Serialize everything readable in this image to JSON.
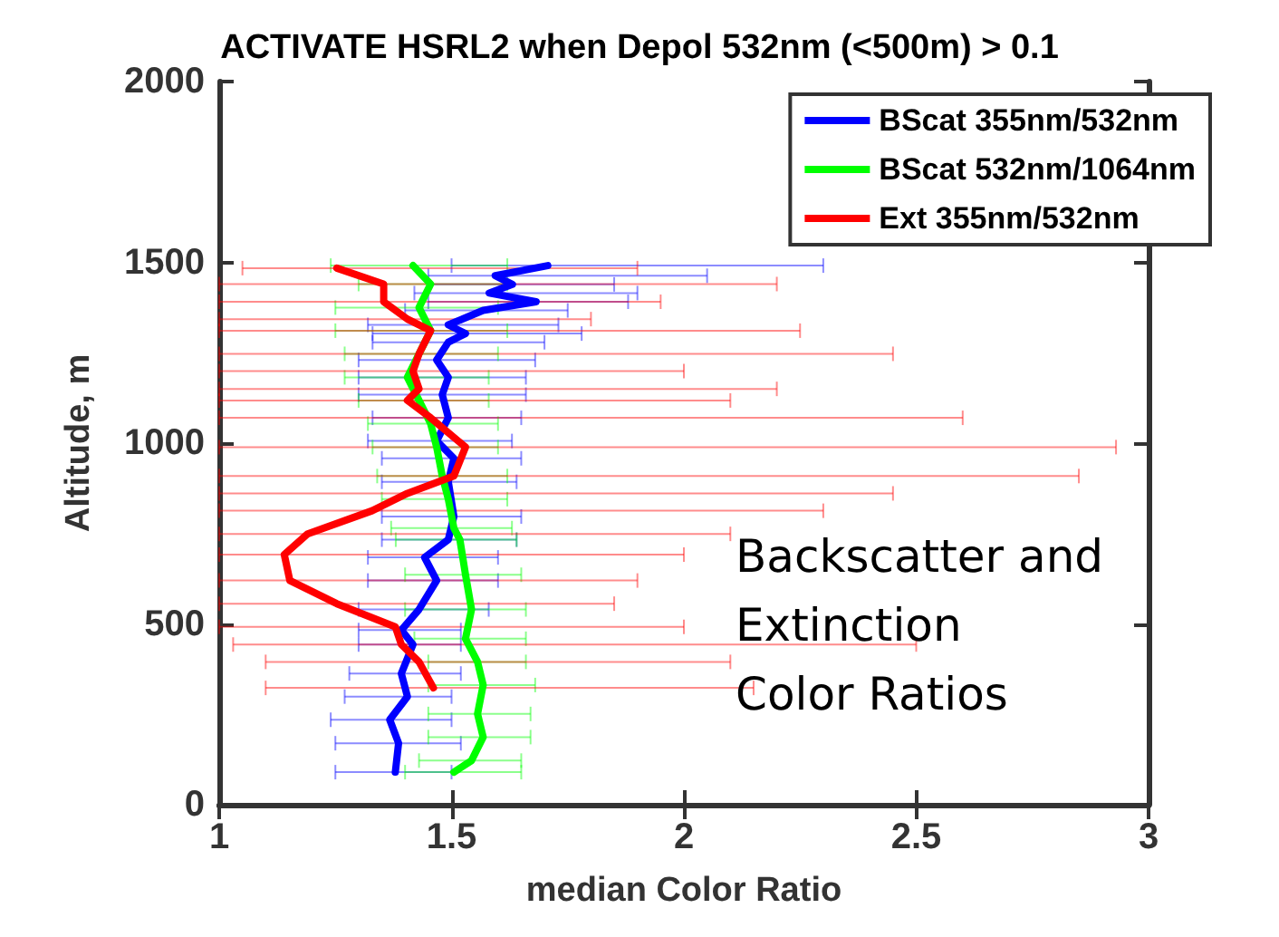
{
  "chart_data": {
    "type": "line",
    "title": "ACTIVATE HSRL2 when Depol 532nm (<500m) > 0.1",
    "xlabel": "median Color Ratio",
    "ylabel": "Altitude, m",
    "xlim": [
      1,
      3
    ],
    "xticks": [
      1,
      1.5,
      2,
      2.5,
      3
    ],
    "ylim": [
      0,
      2000
    ],
    "yticks": [
      0,
      500,
      1000,
      1500,
      2000
    ],
    "grid": false,
    "legend": "top right",
    "marker": "none",
    "line_style": "solid",
    "annotations": [
      "Backscatter and\nExtinction\nColor Ratios"
    ],
    "series": [
      {
        "name": "BScat 355nm/532nm",
        "color": "#0000ff",
        "x": [
          1.707,
          1.594,
          1.631,
          1.581,
          1.682,
          1.568,
          1.493,
          1.53,
          1.493,
          1.468,
          1.493,
          1.48,
          1.493,
          1.468,
          1.505,
          1.493,
          1.505,
          1.493,
          1.442,
          1.468,
          1.43,
          1.392,
          1.417,
          1.392,
          1.405,
          1.367,
          1.386,
          1.379
        ],
        "values": [
          1491,
          1463,
          1439,
          1415,
          1391,
          1367,
          1327,
          1303,
          1279,
          1230,
          1182,
          1134,
          1070,
          1006,
          958,
          893,
          797,
          733,
          684,
          620,
          540,
          483,
          443,
          363,
          299,
          235,
          170,
          90
        ],
        "xerrors": [
          [
            1.5,
            2.3
          ],
          [
            1.45,
            2.05
          ],
          [
            1.45,
            1.85
          ],
          [
            1.42,
            1.9
          ],
          [
            1.45,
            1.88
          ],
          [
            1.4,
            1.75
          ],
          [
            1.32,
            1.73
          ],
          [
            1.33,
            1.78
          ],
          [
            1.33,
            1.7
          ],
          [
            1.3,
            1.68
          ],
          [
            1.3,
            1.66
          ],
          [
            1.3,
            1.66
          ],
          [
            1.33,
            1.65
          ],
          [
            1.32,
            1.63
          ],
          [
            1.35,
            1.65
          ],
          [
            1.35,
            1.64
          ],
          [
            1.35,
            1.65
          ],
          [
            1.35,
            1.64
          ],
          [
            1.32,
            1.6
          ],
          [
            1.32,
            1.6
          ],
          [
            1.3,
            1.58
          ],
          [
            1.3,
            1.52
          ],
          [
            1.3,
            1.52
          ],
          [
            1.28,
            1.52
          ],
          [
            1.27,
            1.5
          ],
          [
            1.24,
            1.5
          ],
          [
            1.25,
            1.52
          ],
          [
            1.25,
            1.5
          ]
        ]
      },
      {
        "name": "BScat 532nm/1064nm",
        "color": "#00ff00",
        "x": [
          1.417,
          1.455,
          1.43,
          1.455,
          1.43,
          1.405,
          1.43,
          1.455,
          1.468,
          1.48,
          1.493,
          1.505,
          1.518,
          1.53,
          1.543,
          1.53,
          1.556,
          1.568,
          1.556,
          1.568,
          1.543,
          1.505
        ],
        "values": [
          1491,
          1440,
          1375,
          1311,
          1247,
          1182,
          1118,
          1054,
          989,
          909,
          845,
          765,
          733,
          636,
          540,
          459,
          395,
          331,
          251,
          187,
          122,
          90
        ],
        "xerrors": [
          [
            1.24,
            1.62
          ],
          [
            1.3,
            1.62
          ],
          [
            1.25,
            1.6
          ],
          [
            1.25,
            1.62
          ],
          [
            1.27,
            1.6
          ],
          [
            1.27,
            1.58
          ],
          [
            1.3,
            1.58
          ],
          [
            1.32,
            1.6
          ],
          [
            1.33,
            1.6
          ],
          [
            1.34,
            1.62
          ],
          [
            1.35,
            1.62
          ],
          [
            1.37,
            1.63
          ],
          [
            1.38,
            1.64
          ],
          [
            1.4,
            1.65
          ],
          [
            1.4,
            1.66
          ],
          [
            1.42,
            1.66
          ],
          [
            1.45,
            1.66
          ],
          [
            1.45,
            1.68
          ],
          [
            1.45,
            1.67
          ],
          [
            1.45,
            1.67
          ],
          [
            1.43,
            1.65
          ],
          [
            1.4,
            1.65
          ]
        ]
      },
      {
        "name": "Ext 355nm/532nm",
        "color": "#ff0000",
        "x": [
          1.253,
          1.354,
          1.354,
          1.405,
          1.455,
          1.43,
          1.417,
          1.43,
          1.405,
          1.455,
          1.53,
          1.505,
          1.405,
          1.329,
          1.19,
          1.14,
          1.152,
          1.253,
          1.379,
          1.392,
          1.43,
          1.461
        ],
        "values": [
          1484,
          1440,
          1391,
          1343,
          1311,
          1247,
          1199,
          1150,
          1118,
          1070,
          989,
          909,
          861,
          813,
          749,
          692,
          620,
          556,
          492,
          443,
          395,
          323
        ],
        "xerrors": [
          [
            1.05,
            1.9
          ],
          [
            1.0,
            2.2
          ],
          [
            1.0,
            1.95
          ],
          [
            1.0,
            1.8
          ],
          [
            1.0,
            2.25
          ],
          [
            1.0,
            2.45
          ],
          [
            1.0,
            2.0
          ],
          [
            1.0,
            2.2
          ],
          [
            1.0,
            2.1
          ],
          [
            1.0,
            2.6
          ],
          [
            1.0,
            2.93
          ],
          [
            1.0,
            2.85
          ],
          [
            1.0,
            2.45
          ],
          [
            1.0,
            2.3
          ],
          [
            1.0,
            2.1
          ],
          [
            1.0,
            2.0
          ],
          [
            1.0,
            1.9
          ],
          [
            1.0,
            1.85
          ],
          [
            1.0,
            2.0
          ],
          [
            1.03,
            2.5
          ],
          [
            1.1,
            2.1
          ],
          [
            1.1,
            2.15
          ]
        ]
      }
    ]
  }
}
